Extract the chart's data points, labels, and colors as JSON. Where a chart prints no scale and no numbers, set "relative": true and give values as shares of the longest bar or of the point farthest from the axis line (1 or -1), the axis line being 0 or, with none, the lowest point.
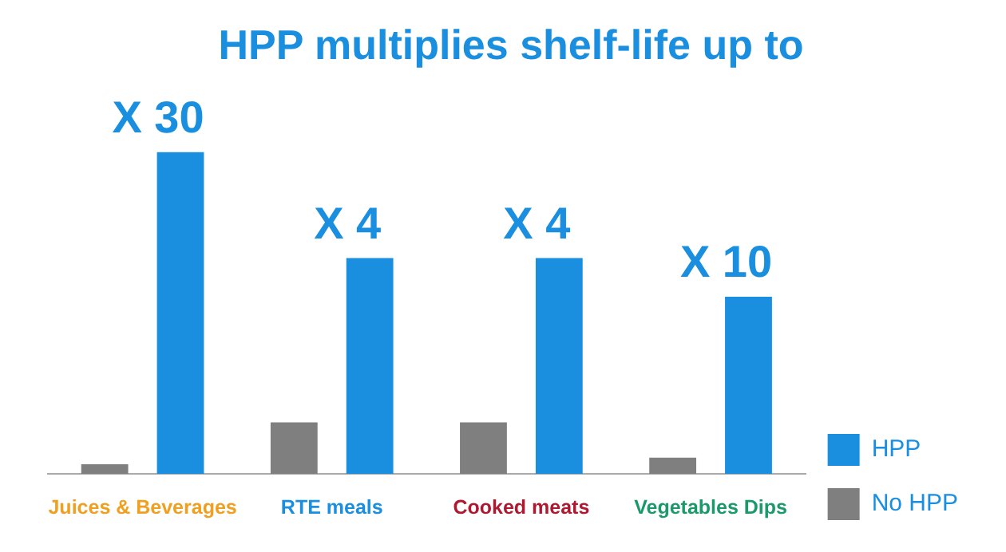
{
  "chart_data": {
    "type": "bar",
    "title": "HPP multiplies shelf-life up to",
    "categories": [
      "Juices & Beverages",
      "RTE meals",
      "Cooked meats",
      "Vegetables Dips"
    ],
    "relative": true,
    "legend": "right",
    "series": [
      {
        "name": "No HPP",
        "color": "#7f7f7f",
        "values": [
          0.03,
          0.16,
          0.16,
          0.05
        ]
      },
      {
        "name": "HPP",
        "color": "#1a8fe0",
        "values": [
          1,
          0.67,
          0.67,
          0.55
        ]
      }
    ],
    "annotations": [
      "X 30",
      "X 4",
      "X 4",
      "X 10"
    ]
  }
}
